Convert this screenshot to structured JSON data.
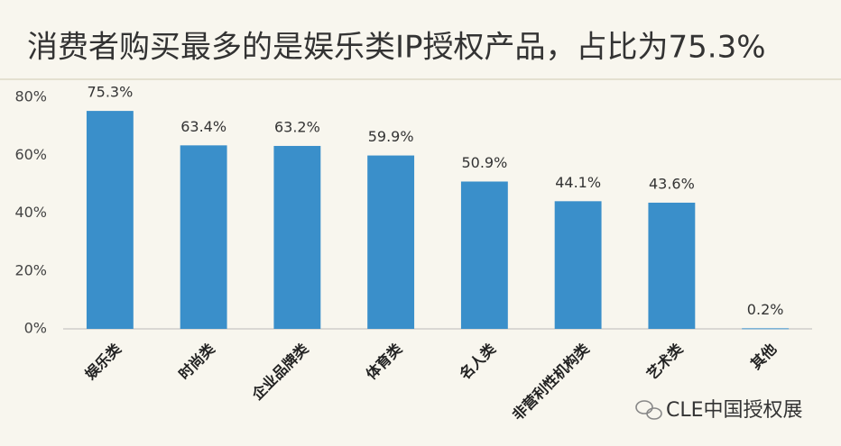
{
  "chart_data": {
    "type": "bar",
    "title": "消费者购买最多的是娱乐类IP授权产品，占比为75.3%",
    "categories": [
      "娱乐类",
      "时尚类",
      "企业品牌类",
      "体育类",
      "名人类",
      "非营利性机构类",
      "艺术类",
      "其他"
    ],
    "values": [
      75.3,
      63.4,
      63.2,
      59.9,
      50.9,
      44.1,
      43.6,
      0.2
    ],
    "value_labels": [
      "75.3%",
      "63.4%",
      "63.2%",
      "59.9%",
      "50.9%",
      "44.1%",
      "43.6%",
      "0.2%"
    ],
    "color": "#3a8fca",
    "ylim": [
      0,
      80
    ],
    "yticks": [
      {
        "value": 0,
        "label": "0%"
      },
      {
        "value": 20,
        "label": "20%"
      },
      {
        "value": 40,
        "label": "40%"
      },
      {
        "value": 60,
        "label": "60%"
      },
      {
        "value": 80,
        "label": "80%"
      }
    ],
    "grid": false,
    "watermark": "CLE中国授权展"
  }
}
